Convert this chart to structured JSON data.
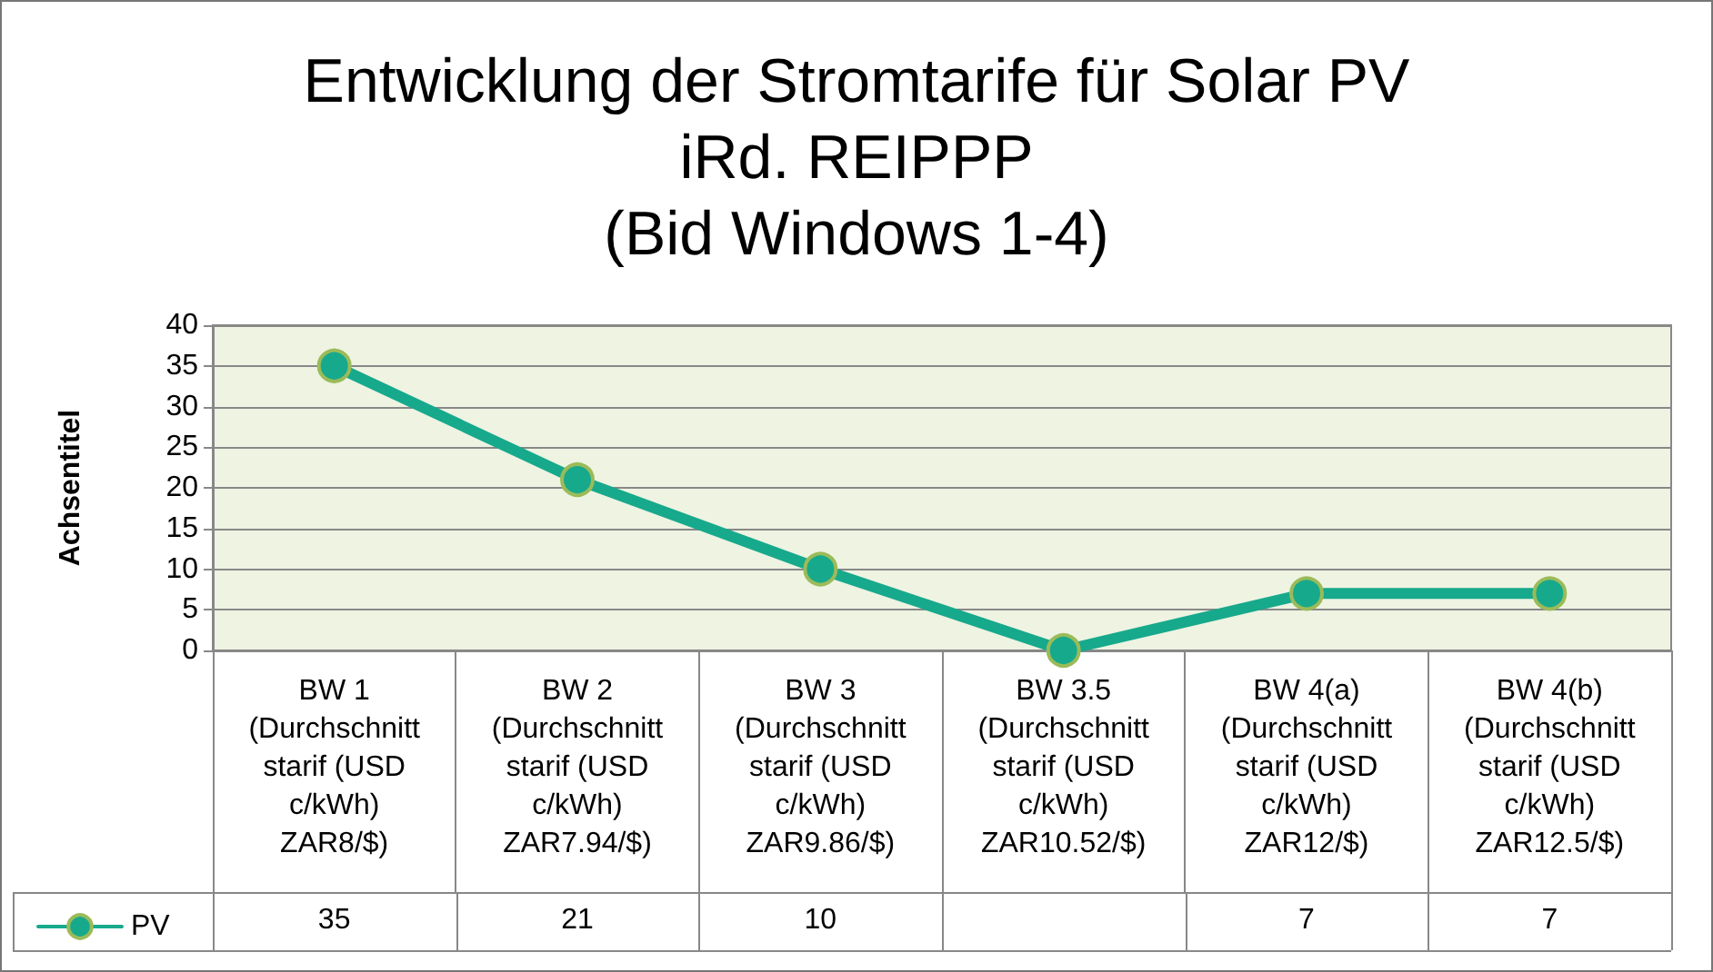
{
  "chart_data": {
    "type": "line",
    "title": "Entwicklung der Stromtarife für Solar PV\niRd. REIPPP\n(Bid Windows 1-4)",
    "ylabel": "Achsentitel",
    "categories": [
      "BW 1\n(Durchschnitt\nstarif (USD\nc/kWh)\nZAR8/$)",
      "BW 2\n(Durchschnitt\nstarif (USD\nc/kWh)\nZAR7.94/$)",
      "BW 3\n(Durchschnitt\nstarif (USD\nc/kWh)\nZAR9.86/$)",
      "BW 3.5\n(Durchschnitt\nstarif (USD\nc/kWh)\nZAR10.52/$)",
      "BW 4(a)\n(Durchschnitt\nstarif (USD\nc/kWh)\nZAR12/$)",
      "BW 4(b)\n(Durchschnitt\nstarif (USD\nc/kWh)\nZAR12.5/$)"
    ],
    "series": [
      {
        "name": "PV",
        "color": "#17a98c",
        "values": [
          35,
          21,
          10,
          0,
          7,
          7
        ],
        "value_labels": [
          "35",
          "21",
          "10",
          null,
          "7",
          "7"
        ]
      }
    ],
    "ylim": [
      0,
      40
    ],
    "yticks": [
      0,
      5,
      10,
      15,
      20,
      25,
      30,
      35,
      40
    ],
    "grid": "y",
    "legend": "bottom",
    "marker": "circle",
    "line_style": "solid"
  }
}
